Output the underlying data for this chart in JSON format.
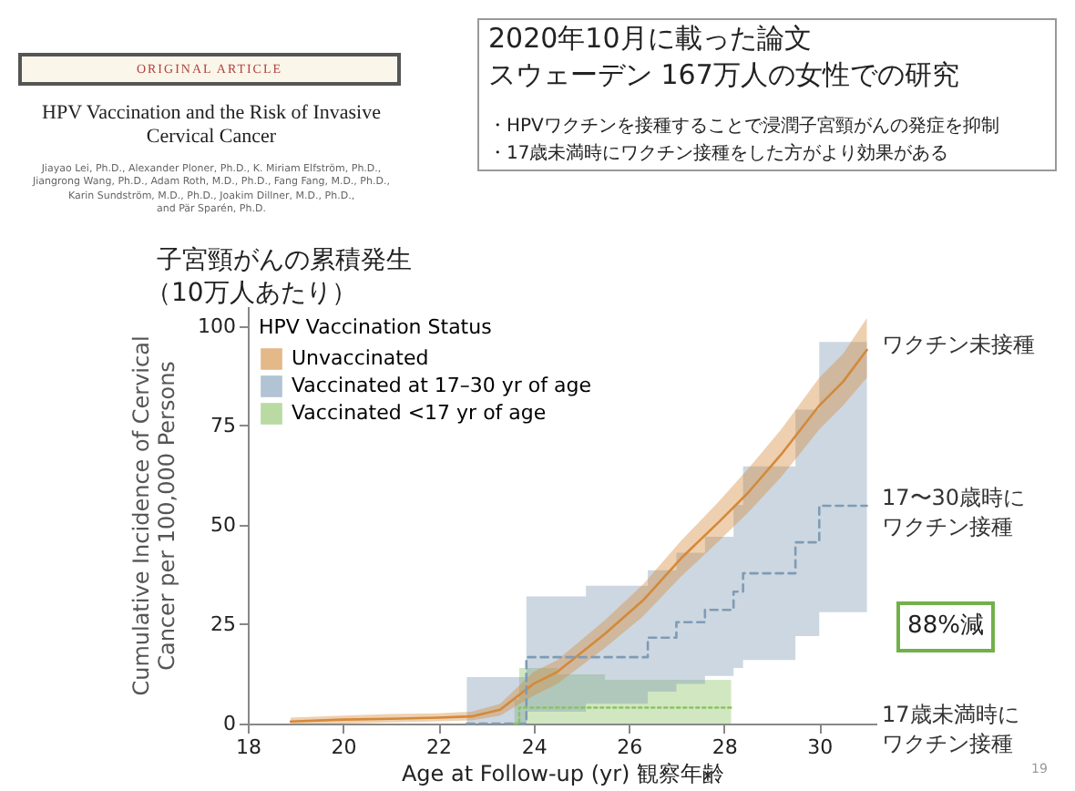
{
  "chart_data": {
    "type": "line",
    "title": "子宮頸がんの累積発生",
    "subtitle": "（10万人あたり）",
    "xlabel": "Age at Follow-up (yr) 観察年齢",
    "ylabel": "Cumulative Incidence of Cervical\nCancer per 100,000 Persons",
    "legend_title": "HPV Vaccination Status",
    "legend": "top left",
    "xlim": [
      18,
      31.2
    ],
    "xticks": [
      18,
      20,
      22,
      24,
      26,
      28,
      30
    ],
    "ylim": [
      0,
      105
    ],
    "yticks": [
      0,
      25,
      50,
      75,
      100
    ],
    "series": [
      {
        "name": "Unvaccinated",
        "type": "line",
        "line_style": "solid",
        "color": "#d4893a",
        "x": [
          18.9,
          20,
          21,
          22,
          22.7,
          23.3,
          24,
          24.5,
          25.5,
          26.3,
          27.1,
          27.9,
          28.5,
          29.2,
          30,
          30.5,
          31
        ],
        "values": [
          0.5,
          1,
          1.2,
          1.5,
          1.8,
          3.5,
          10,
          13,
          22.6,
          31,
          41.6,
          50.8,
          58,
          67.7,
          80,
          86,
          94
        ],
        "lower": [
          0,
          0,
          0.3,
          0.6,
          0.8,
          2,
          7,
          10,
          19,
          27,
          37,
          46,
          53,
          62,
          74,
          80,
          87
        ],
        "upper": [
          1.5,
          2,
          2.4,
          2.6,
          3,
          5,
          13,
          16,
          26,
          35,
          46,
          56,
          64,
          74,
          87,
          93,
          102
        ]
      },
      {
        "name": "Vaccinated at 17–30 yr of age",
        "type": "step",
        "line_style": "dashed",
        "color": "#7f9bb5",
        "x": [
          22.6,
          23.85,
          25.1,
          26.4,
          27.0,
          27.6,
          28.2,
          28.4,
          29.5,
          30.0,
          31.0
        ],
        "values": [
          0,
          16.7,
          16.7,
          21.6,
          25.5,
          28.6,
          33.2,
          37.8,
          45.6,
          54.8,
          54.8
        ],
        "lower": [
          0,
          3,
          5,
          8,
          10,
          12,
          14,
          16,
          22,
          28,
          28
        ],
        "upper": [
          11.7,
          32,
          34.7,
          38.6,
          43,
          47,
          55,
          64.7,
          79,
          96,
          96
        ]
      },
      {
        "name": "Vaccinated <17 yr of age",
        "type": "step",
        "line_style": "dotted",
        "color": "#8cc265",
        "x": [
          23.6,
          23.7,
          24.5,
          25.5,
          28.15
        ],
        "values": [
          0,
          4,
          4,
          4,
          4
        ],
        "lower": [
          0,
          0,
          0,
          0,
          0
        ],
        "upper": [
          6,
          14,
          12.4,
          11,
          11
        ]
      }
    ],
    "annotations": [
      "ORIGINAL ARTICLE",
      "HPV Vaccination and the Risk of Invasive\nCervical Cancer",
      "Jiayao Lei, Ph.D., Alexander Ploner, Ph.D., K. Miriam Elfström, Ph.D.,\nJiangrong Wang, Ph.D., Adam Roth, M.D., Ph.D., Fang Fang, M.D., Ph.D.,\nKarin Sundström, M.D., Ph.D., Joakim Dillner, M.D., Ph.D.,\nand Pär Sparén, Ph.D.",
      "2020年10月に載った論文",
      "スウェーデン 167万人の女性での研究",
      "・HPVワクチンを接種することで浸潤子宮頸がんの発症を抑制",
      "・17歳未満時にワクチン接種をした方がより効果がある",
      "88%減",
      "19",
      "ワクチン未接種",
      "17〜30歳時に",
      "ワクチン接種",
      "17歳未満時に",
      "ワクチン接種"
    ]
  }
}
